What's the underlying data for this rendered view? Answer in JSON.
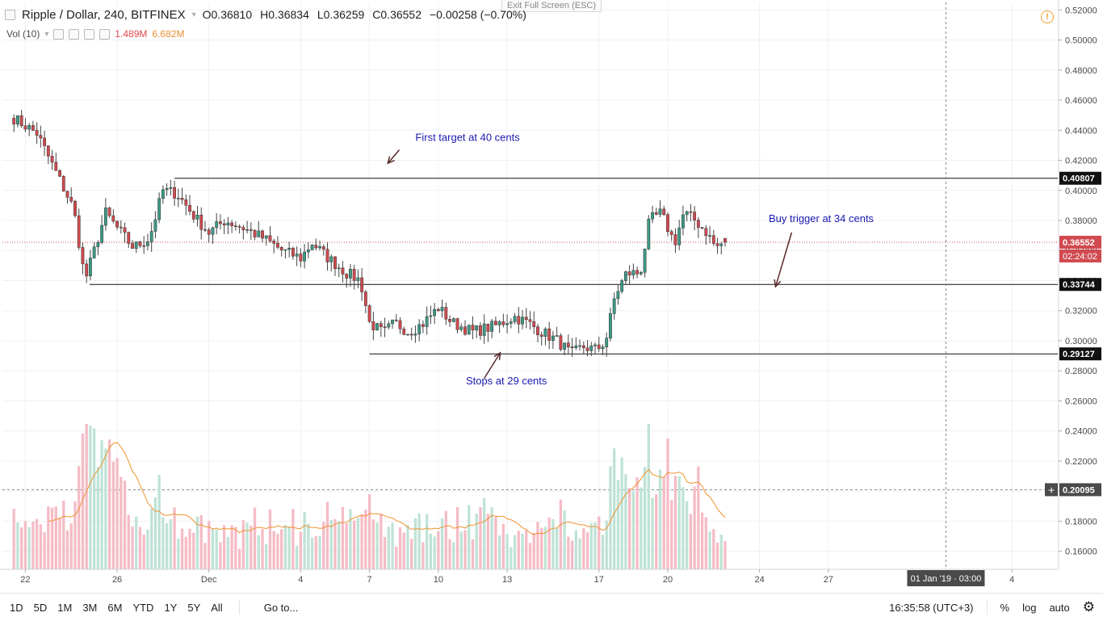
{
  "window": {
    "exit_fullscreen": "Exit Full Screen (ESC)"
  },
  "header": {
    "symbol": "Ripple / Dollar, 240, BITFINEX",
    "open_label": "O",
    "open": "0.36810",
    "high_label": "H",
    "high": "0.36834",
    "low_label": "L",
    "low": "0.36259",
    "close_label": "C",
    "close": "0.36552",
    "change": "−0.00258 (−0.70%)"
  },
  "volume_legend": {
    "label": "Vol (10)",
    "vol": "1.489M",
    "ma": "6.682M"
  },
  "bottom_bar": {
    "timeframes": [
      "1D",
      "5D",
      "1M",
      "3M",
      "6M",
      "YTD",
      "1Y",
      "5Y",
      "All"
    ],
    "goto": "Go to...",
    "clock": "16:35:58 (UTC+3)",
    "percent": "%",
    "log": "log",
    "auto": "auto"
  },
  "colors": {
    "up": "#3c9a86",
    "down": "#d14a4f",
    "vol_up": "#bfe3d6",
    "vol_down": "#f5bcc6",
    "vol_ma": "#f0922e",
    "annotation": "#1a1ab0",
    "current_line": "#d14a4f"
  },
  "chart_data": {
    "type": "candlestick",
    "title": "Ripple / Dollar, 240, BITFINEX",
    "y_axis": {
      "ylim": [
        0.148,
        0.525
      ],
      "ticks": [
        "0.52000",
        "0.50000",
        "0.48000",
        "0.46000",
        "0.44000",
        "0.42000",
        "0.40000",
        "0.38000",
        "0.36000",
        "0.34000",
        "0.32000",
        "0.30000",
        "0.28000",
        "0.26000",
        "0.24000",
        "0.22000",
        "0.20000",
        "0.18000",
        "0.16000"
      ],
      "tick_values": [
        0.52,
        0.5,
        0.48,
        0.46,
        0.44,
        0.42,
        0.4,
        0.38,
        0.36,
        0.34,
        0.32,
        0.3,
        0.28,
        0.26,
        0.24,
        0.22,
        0.2,
        0.18,
        0.16
      ]
    },
    "x_axis": {
      "ticks": [
        {
          "label": "22",
          "day": 22
        },
        {
          "label": "26",
          "day": 26
        },
        {
          "label": "Dec",
          "day": 30
        },
        {
          "label": "4",
          "day": 34
        },
        {
          "label": "7",
          "day": 37
        },
        {
          "label": "10",
          "day": 40
        },
        {
          "label": "13",
          "day": 43
        },
        {
          "label": "17",
          "day": 47
        },
        {
          "label": "20",
          "day": 50
        },
        {
          "label": "24",
          "day": 54
        },
        {
          "label": "27",
          "day": 57
        },
        {
          "label": "4",
          "day": 65
        }
      ],
      "crosshair_date": "01 Jan '19 · 03:00",
      "crosshair_day": 62.125
    },
    "horizontal_levels": [
      {
        "value": 0.40807,
        "label": "0.40807",
        "start_day": 28.5
      },
      {
        "value": 0.33744,
        "label": "0.33744",
        "start_day": 24.8
      },
      {
        "value": 0.29127,
        "label": "0.29127",
        "start_day": 37.0
      }
    ],
    "current_price": {
      "value": 0.36552,
      "label": "0.36552",
      "countdown": "02:24:02"
    },
    "crosshair_price": {
      "value": 0.20095,
      "label": "0.20095"
    },
    "annotations": [
      {
        "text": "First target at 40 cents",
        "day": 39.0,
        "price": 0.433,
        "arrow_from": [
          38.3,
          0.427
        ],
        "arrow_to": [
          37.8,
          0.418
        ]
      },
      {
        "text": "Buy trigger at 34 cents",
        "day": 54.4,
        "price": 0.379,
        "arrow_from": [
          55.4,
          0.372
        ],
        "arrow_to": [
          54.7,
          0.336
        ]
      },
      {
        "text": "Stops at 29 cents",
        "day": 41.2,
        "price": 0.271,
        "arrow_from": [
          42.0,
          0.275
        ],
        "arrow_to": [
          42.7,
          0.292
        ]
      }
    ],
    "anchors": [
      [
        21.5,
        0.448
      ],
      [
        22.5,
        0.438
      ],
      [
        23.4,
        0.41
      ],
      [
        24.1,
        0.388
      ],
      [
        24.6,
        0.34
      ],
      [
        25.0,
        0.36
      ],
      [
        25.5,
        0.385
      ],
      [
        26.0,
        0.375
      ],
      [
        26.7,
        0.362
      ],
      [
        27.4,
        0.368
      ],
      [
        28.0,
        0.4
      ],
      [
        28.6,
        0.398
      ],
      [
        29.4,
        0.382
      ],
      [
        30.0,
        0.372
      ],
      [
        30.7,
        0.38
      ],
      [
        31.5,
        0.375
      ],
      [
        32.4,
        0.368
      ],
      [
        33.2,
        0.36
      ],
      [
        34.0,
        0.355
      ],
      [
        34.5,
        0.365
      ],
      [
        35.2,
        0.355
      ],
      [
        36.0,
        0.345
      ],
      [
        36.6,
        0.34
      ],
      [
        37.0,
        0.312
      ],
      [
        37.6,
        0.305
      ],
      [
        38.1,
        0.312
      ],
      [
        38.7,
        0.306
      ],
      [
        39.3,
        0.311
      ],
      [
        40.0,
        0.322
      ],
      [
        40.6,
        0.312
      ],
      [
        41.5,
        0.306
      ],
      [
        42.5,
        0.31
      ],
      [
        43.3,
        0.316
      ],
      [
        43.9,
        0.312
      ],
      [
        44.5,
        0.306
      ],
      [
        45.2,
        0.3
      ],
      [
        45.8,
        0.291
      ],
      [
        46.3,
        0.296
      ],
      [
        46.9,
        0.294
      ],
      [
        47.3,
        0.3
      ],
      [
        47.7,
        0.33
      ],
      [
        48.2,
        0.345
      ],
      [
        48.8,
        0.345
      ],
      [
        49.2,
        0.38
      ],
      [
        49.7,
        0.385
      ],
      [
        50.3,
        0.365
      ],
      [
        50.7,
        0.385
      ],
      [
        51.2,
        0.38
      ],
      [
        51.7,
        0.372
      ],
      [
        52.1,
        0.362
      ],
      [
        52.5,
        0.366
      ]
    ],
    "volume_axis": {
      "max": 12.0,
      "ma_period": 10
    }
  }
}
